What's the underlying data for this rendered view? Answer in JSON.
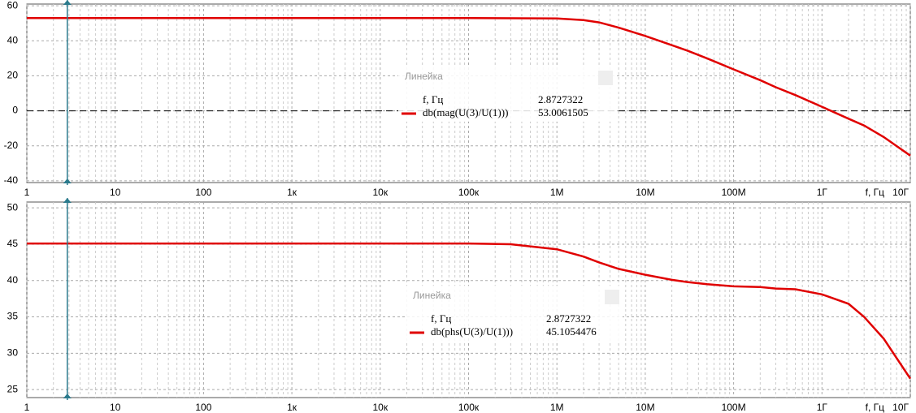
{
  "chart_data": [
    {
      "type": "line",
      "xlabel": "f, Гц",
      "log_x": true,
      "grid": true,
      "refline": 0,
      "xlim": [
        1,
        10000000000
      ],
      "ylim": [
        -41,
        61
      ],
      "xticks": [
        1,
        10,
        100,
        {
          "value": 1000,
          "label": "1к"
        },
        {
          "value": 10000,
          "label": "10к"
        },
        {
          "value": 100000,
          "label": "100к"
        },
        {
          "value": 1000000,
          "label": "1М"
        },
        {
          "value": 10000000,
          "label": "10М"
        },
        {
          "value": 100000000,
          "label": "100М"
        },
        {
          "value": 1000000000,
          "label": "1Г"
        },
        {
          "value": 10000000000,
          "label": "10Г"
        }
      ],
      "yticks": [
        60,
        40,
        20,
        0,
        -20,
        -40
      ],
      "x": [
        1,
        100000,
        1000000,
        2000000,
        3000000,
        5000000,
        10000000,
        20000000,
        30000000,
        50000000,
        100000000,
        200000000,
        300000000,
        500000000,
        1000000000,
        2000000000,
        3000000000,
        5000000000,
        10000000000
      ],
      "series": [
        {
          "name": "db(mag(U(3)/U(1)))",
          "color": "#e00000",
          "values": [
            53,
            53,
            52.8,
            51.8,
            50.5,
            47.5,
            42.8,
            37.5,
            34.4,
            30,
            23.7,
            17.5,
            13.5,
            9,
            2.3,
            -4.5,
            -8.4,
            -15,
            -25.6
          ]
        }
      ],
      "cursor": {
        "title": "Линейка",
        "x_label": "f, Гц",
        "x": 2.8727322,
        "value": 53.0061505,
        "color": "#2b7a8c"
      }
    },
    {
      "type": "line",
      "xlabel": "f, Гц",
      "log_x": true,
      "grid": true,
      "xlim": [
        1,
        10000000000
      ],
      "ylim": [
        23.9,
        50.8
      ],
      "xticks": [
        1,
        10,
        100,
        {
          "value": 1000,
          "label": "1к"
        },
        {
          "value": 10000,
          "label": "10к"
        },
        {
          "value": 100000,
          "label": "100к"
        },
        {
          "value": 1000000,
          "label": "1М"
        },
        {
          "value": 10000000,
          "label": "10М"
        },
        {
          "value": 100000000,
          "label": "100М"
        },
        {
          "value": 1000000000,
          "label": "1Г"
        },
        {
          "value": 10000000000,
          "label": "10Г"
        }
      ],
      "yticks": [
        50,
        45,
        40,
        35,
        30,
        25
      ],
      "x": [
        1,
        100000,
        300000,
        1000000,
        2000000,
        3000000,
        5000000,
        10000000,
        20000000,
        30000000,
        50000000,
        100000000,
        200000000,
        300000000,
        500000000,
        1000000000,
        2000000000,
        3000000000,
        5000000000,
        10000000000
      ],
      "series": [
        {
          "name": "db(phs(U(3)/U(1)))",
          "color": "#e00000",
          "values": [
            45.1,
            45.1,
            45,
            44.3,
            43.3,
            42.5,
            41.6,
            40.8,
            40.1,
            39.8,
            39.5,
            39.2,
            39.1,
            38.9,
            38.8,
            38.1,
            36.8,
            35,
            32,
            26.5
          ]
        }
      ],
      "cursor": {
        "title": "Линейка",
        "x_label": "f, Гц",
        "x": 2.8727322,
        "value": 45.1054476,
        "color": "#2b7a8c"
      }
    }
  ]
}
